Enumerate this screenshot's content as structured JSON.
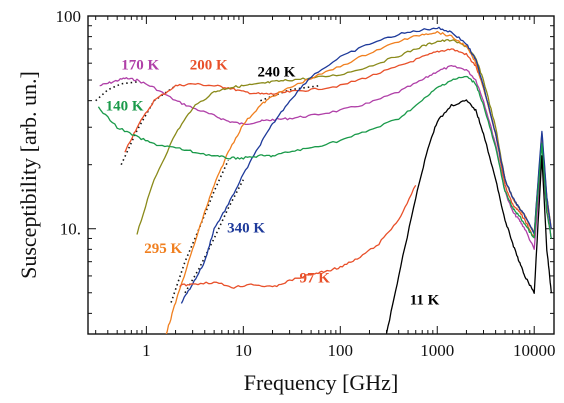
{
  "chart_data": {
    "type": "line",
    "xscale": "log",
    "yscale": "log",
    "xlabel": "Frequency [GHz]",
    "ylabel": "Susceptibility [arb. un.]",
    "xlim": [
      0.25,
      16000
    ],
    "ylim": [
      3.2,
      100
    ],
    "x_ticks": [
      {
        "value": 1,
        "label": "1"
      },
      {
        "value": 10,
        "label": "10"
      },
      {
        "value": 100,
        "label": "100"
      },
      {
        "value": 1000,
        "label": "1000"
      },
      {
        "value": 10000,
        "label": "10000"
      }
    ],
    "y_ticks": [
      {
        "value": 10,
        "label": "10."
      },
      {
        "value": 100,
        "label": "100"
      }
    ],
    "series": [
      {
        "name": "170 K",
        "color": "#b040a8",
        "x": [
          0.33,
          0.45,
          0.6,
          0.8,
          1.2,
          2,
          3,
          5,
          7,
          10,
          15,
          20,
          30,
          50,
          100,
          200,
          400,
          700,
          1000,
          1400,
          2000,
          2500,
          3000,
          4000,
          5000,
          6000,
          7000,
          8000,
          10000,
          12000,
          13500,
          15000
        ],
        "y": [
          47,
          49,
          51,
          50,
          46,
          40,
          37,
          34,
          32,
          31,
          32,
          32.5,
          33,
          34,
          36,
          39,
          44,
          50,
          55,
          58,
          56,
          50,
          40,
          25,
          15,
          12,
          11,
          10,
          8,
          22,
          12,
          9
        ]
      },
      {
        "name": "200 K",
        "color": "#e8502a",
        "x": [
          0.6,
          0.8,
          1.2,
          2,
          3,
          5,
          7,
          10,
          15,
          20,
          30,
          50,
          100,
          200,
          400,
          700,
          1000,
          1400,
          2000,
          2500,
          3000,
          4000,
          5000,
          6000,
          7000,
          8000,
          10000,
          12000,
          13500,
          15000
        ],
        "y": [
          23,
          30,
          40,
          47,
          48,
          47,
          46,
          44,
          43,
          43,
          44,
          45,
          47,
          52,
          58,
          64,
          68,
          70,
          66,
          58,
          46,
          28,
          16,
          13,
          12,
          11,
          9,
          26,
          13,
          10
        ]
      },
      {
        "name": "240 K",
        "color": "#8a8a1a",
        "x": [
          0.8,
          1.2,
          2,
          3,
          5,
          7,
          10,
          15,
          20,
          30,
          50,
          100,
          200,
          400,
          700,
          1000,
          1400,
          2000,
          2500,
          3000,
          4000,
          5000,
          6000,
          7000,
          8000,
          10000,
          12000,
          13500,
          15000
        ],
        "y": [
          9.5,
          17,
          28,
          37,
          44,
          46,
          47,
          48,
          49,
          50,
          51,
          53,
          58,
          65,
          72,
          76,
          77,
          72,
          63,
          50,
          30,
          17,
          14,
          12.5,
          11.5,
          9.5,
          27,
          14,
          10
        ]
      },
      {
        "name": "295 K",
        "color": "#f07f1f",
        "x": [
          1.6,
          2,
          3,
          4,
          5,
          7,
          10,
          15,
          20,
          30,
          50,
          100,
          200,
          400,
          700,
          1000,
          1400,
          2000,
          2500,
          3000,
          4000,
          5000,
          6000,
          7000,
          8000,
          10000,
          12000,
          13500,
          15000
        ],
        "y": [
          3.2,
          4.5,
          8,
          12,
          16,
          23,
          31,
          38,
          42,
          46,
          51,
          58,
          67,
          76,
          82,
          84,
          80,
          72,
          60,
          46,
          28,
          17,
          14,
          12.5,
          11.5,
          9.5,
          28,
          14,
          10
        ]
      },
      {
        "name": "340 K",
        "color": "#1e3a9a",
        "x": [
          2.3,
          3,
          4,
          5,
          7,
          10,
          15,
          20,
          30,
          50,
          100,
          200,
          400,
          700,
          1000,
          1400,
          2000,
          2500,
          3000,
          4000,
          5000,
          6000,
          7000,
          8000,
          10000,
          12000,
          13500,
          15000
        ],
        "y": [
          4.5,
          5.5,
          7,
          10,
          13,
          18,
          25,
          31,
          40,
          52,
          64,
          74,
          82,
          86,
          88,
          84,
          74,
          62,
          47,
          28,
          17,
          14,
          12.5,
          11.5,
          9.5,
          29,
          14,
          10
        ]
      },
      {
        "name": "140 K",
        "color": "#1a9a4a",
        "x": [
          0.32,
          0.5,
          0.8,
          1.2,
          2,
          3,
          5,
          7,
          10,
          15,
          20,
          30,
          50,
          100,
          200,
          400,
          700,
          1000,
          1400,
          2000,
          2500,
          3000,
          4000,
          5000,
          6000,
          7000,
          8000,
          10000,
          12000,
          13500,
          15000
        ],
        "y": [
          37,
          30,
          27,
          25,
          24,
          23,
          22,
          21.5,
          21.5,
          22,
          22,
          23,
          24,
          26,
          29,
          33,
          40,
          46,
          50,
          52,
          48,
          38,
          24,
          15,
          12.5,
          11.5,
          10.5,
          9,
          25,
          12,
          9
        ]
      },
      {
        "name": "97 K",
        "color": "#e8502a",
        "x": [
          2.2,
          3,
          5,
          8,
          12,
          20,
          30,
          50,
          70,
          100,
          150,
          250,
          400,
          600
        ],
        "y": [
          5.4,
          5.5,
          5.6,
          5.3,
          5.5,
          5.3,
          5.7,
          6.1,
          6.3,
          6.6,
          7.2,
          8.5,
          11,
          16
        ]
      },
      {
        "name": "11 K",
        "color": "#000000",
        "x": [
          300,
          400,
          600,
          800,
          1000,
          1400,
          2000,
          2500,
          3000,
          4000,
          5000,
          6000,
          7000,
          8000,
          10000,
          12000,
          13500,
          15000
        ],
        "y": [
          3.2,
          6,
          14,
          24,
          32,
          38,
          40,
          36,
          28,
          17,
          11,
          8.5,
          7,
          6,
          5,
          22,
          8,
          5
        ]
      }
    ],
    "fit_curves": [
      {
        "x": [
          0.3,
          0.4,
          0.55,
          0.8
        ],
        "y": [
          40,
          45,
          48,
          49
        ]
      },
      {
        "x": [
          0.55,
          0.8,
          1.2,
          2
        ],
        "y": [
          20,
          29,
          40,
          47
        ]
      },
      {
        "x": [
          1.8,
          2.5,
          3.5,
          5,
          7
        ],
        "y": [
          4.5,
          7,
          10,
          15,
          21
        ]
      },
      {
        "x": [
          2.5,
          3.5,
          5,
          7,
          10
        ],
        "y": [
          5,
          6.5,
          9,
          12.5,
          17
        ]
      },
      {
        "x": [
          15,
          30,
          60
        ],
        "y": [
          40,
          45,
          47
        ]
      }
    ],
    "annotations": [
      {
        "text": "170 K",
        "color": "#b040a8",
        "x": 0.55,
        "y": 56
      },
      {
        "text": "200 K",
        "color": "#e8502a",
        "x": 2.8,
        "y": 56
      },
      {
        "text": "240 K",
        "color": "#000000",
        "x": 14,
        "y": 52
      },
      {
        "text": "140 K",
        "color": "#1a9a4a",
        "x": 0.38,
        "y": 36
      },
      {
        "text": "295 K",
        "color": "#f07f1f",
        "x": 0.95,
        "y": 7.7
      },
      {
        "text": "340 K",
        "color": "#1e3a9a",
        "x": 6.8,
        "y": 9.6
      },
      {
        "text": "97 K",
        "color": "#e8502a",
        "x": 38,
        "y": 5.6
      },
      {
        "text": "11 K",
        "color": "#000000",
        "x": 520,
        "y": 4.4
      }
    ]
  }
}
